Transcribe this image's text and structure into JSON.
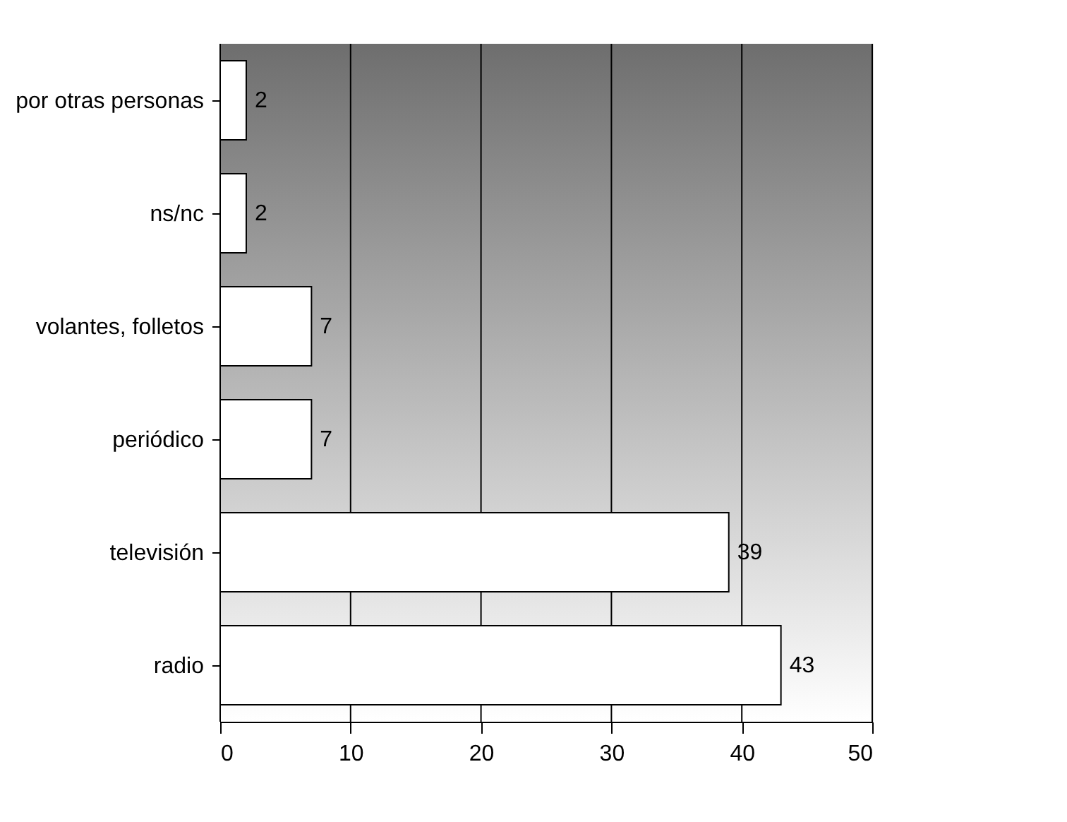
{
  "chart_data": {
    "type": "bar",
    "orientation": "horizontal",
    "categories": [
      "por otras personas",
      "ns/nc",
      "volantes, folletos",
      "periódico",
      "televisión",
      "radio"
    ],
    "values": [
      2,
      2,
      7,
      7,
      39,
      43
    ],
    "color": "#ffffff",
    "xlim": [
      0,
      50
    ],
    "xticks": [
      0,
      10,
      20,
      30,
      40,
      50
    ],
    "grid": "x",
    "data_labels": true
  }
}
